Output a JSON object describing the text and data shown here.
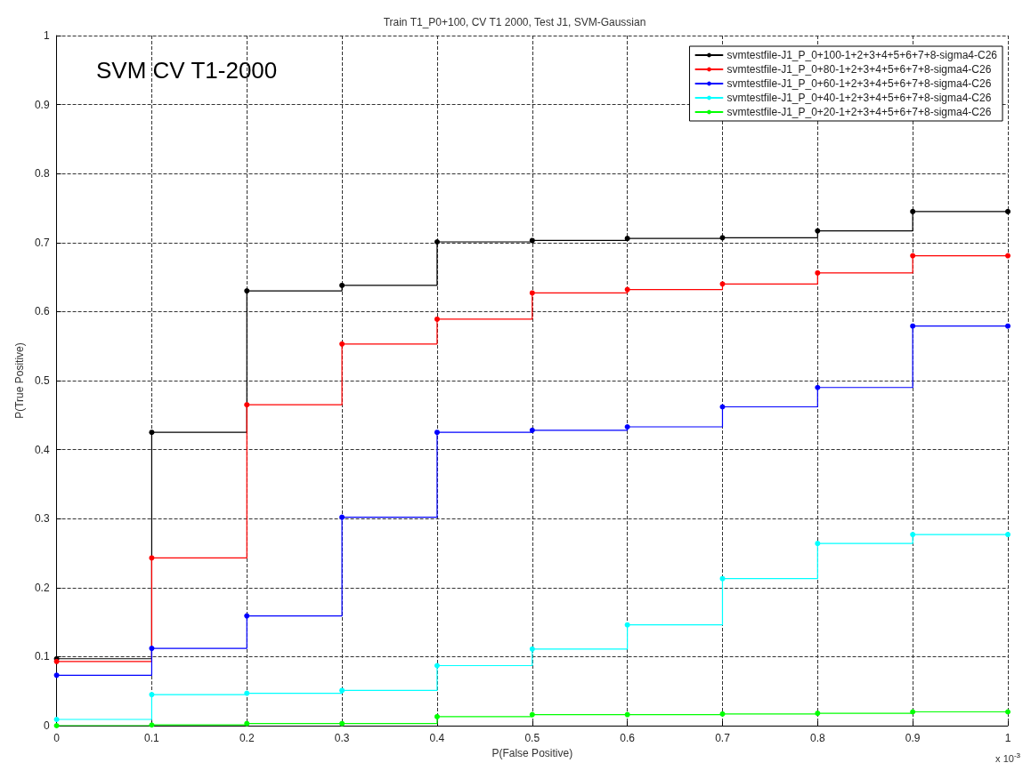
{
  "chart_data": {
    "type": "step",
    "title": "Train T1_P0+100, CV T1 2000, Test J1, SVM-Gaussian",
    "xlabel": "P(False Positive)",
    "ylabel": "P(True Positive)",
    "annotations": [
      "SVM CV T1-2000",
      "x 10$^{-3}$"
    ],
    "x": [
      0,
      0.1,
      0.2,
      0.3,
      0.4,
      0.5,
      0.6,
      0.7,
      0.8,
      0.9,
      1
    ],
    "series": [
      {
        "name": "svmtestfile-J1_P_0+100-1+2+3+4+5+6+7+8-sigma4-C26",
        "color": "#000000",
        "values": [
          0.097,
          0.425,
          0.63,
          0.638,
          0.701,
          0.703,
          0.706,
          0.707,
          0.717,
          0.745,
          0.745
        ]
      },
      {
        "name": "svmtestfile-J1_P_0+80-1+2+3+4+5+6+7+8-sigma4-C26",
        "color": "#ff0000",
        "values": [
          0.093,
          0.243,
          0.465,
          0.553,
          0.589,
          0.627,
          0.632,
          0.64,
          0.656,
          0.681,
          0.681
        ]
      },
      {
        "name": "svmtestfile-J1_P_0+60-1+2+3+4+5+6+7+8-sigma4-C26",
        "color": "#0000ff",
        "values": [
          0.073,
          0.112,
          0.159,
          0.302,
          0.425,
          0.428,
          0.433,
          0.462,
          0.49,
          0.579,
          0.579
        ]
      },
      {
        "name": "svmtestfile-J1_P_0+40-1+2+3+4+5+6+7+8-sigma4-C26",
        "color": "#00ffff",
        "values": [
          0.009,
          0.045,
          0.047,
          0.051,
          0.087,
          0.111,
          0.146,
          0.213,
          0.264,
          0.277,
          0.277
        ]
      },
      {
        "name": "svmtestfile-J1_P_0+20-1+2+3+4+5+6+7+8-sigma4-C26",
        "color": "#00ff00",
        "values": [
          0,
          0.001,
          0.003,
          0.003,
          0.013,
          0.016,
          0.016,
          0.017,
          0.018,
          0.02,
          0.02
        ]
      }
    ],
    "xlim": [
      0,
      1
    ],
    "xticks": [
      0,
      0.1,
      0.2,
      0.3,
      0.4,
      0.5,
      0.6,
      0.7,
      0.8,
      0.9,
      1
    ],
    "ylim": [
      0,
      1
    ],
    "yticks": [
      0,
      0.1,
      0.2,
      0.3,
      0.4,
      0.5,
      0.6,
      0.7,
      0.8,
      0.9,
      1
    ],
    "grid": true,
    "legend": "top right",
    "marker": "circle",
    "line_style": "solid"
  }
}
